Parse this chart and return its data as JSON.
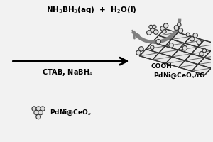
{
  "bg_color": "#f2f2f2",
  "top_text": "NH$_3$BH$_3$(aq)  +  H$_2$O(l)",
  "arrow_label": "CTAB, NaBH$_4$",
  "product_label1": "COOH",
  "product_label2": "PdNi@CeO$_x$/rG",
  "reactant_label": "PdNi@CeO$_x$",
  "fig_width": 3.0,
  "fig_height": 2.0,
  "dpi": 100,
  "sheet_color": "#e8e8e8",
  "line_color": "#333333",
  "particle_color": "#dddddd"
}
